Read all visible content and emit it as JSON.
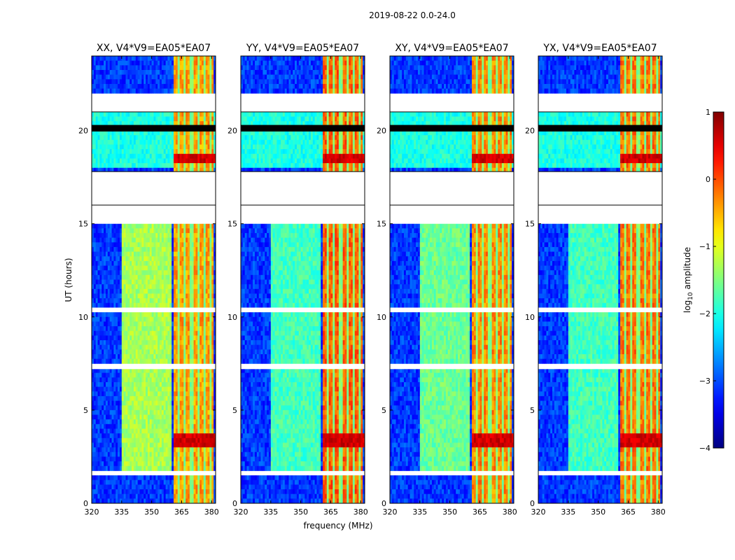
{
  "figure_title": "2019-08-22 0.0-24.0",
  "colors": {
    "colormap": "jet",
    "blank": "#ffffff",
    "frame": "#000000"
  },
  "chart_data": {
    "type": "heatmap",
    "xlabel": "frequency (MHz)",
    "ylabel": "UT (hours)",
    "xlim": [
      320,
      382
    ],
    "ylim": [
      0,
      24
    ],
    "xticks": [
      320,
      335,
      350,
      365,
      380
    ],
    "yticks": [
      0,
      5,
      10,
      15,
      20
    ],
    "frequency_bands_MHz": {
      "broad_emission": [
        335,
        360
      ],
      "rfi_channels": [
        361,
        362,
        365,
        368,
        372,
        375,
        378,
        381
      ]
    },
    "panels": [
      {
        "title": "XX, V4*V9=EA05*EA07",
        "broad_level": -1.3,
        "rfi_level": -0.4
      },
      {
        "title": "YY, V4*V9=EA05*EA07",
        "broad_level": -1.8,
        "rfi_level": -0.1
      },
      {
        "title": "XY, V4*V9=EA05*EA07",
        "broad_level": -1.6,
        "rfi_level": -0.3
      },
      {
        "title": "YX, V4*V9=EA05*EA07",
        "broad_level": -1.8,
        "rfi_level": -0.2
      }
    ],
    "flagged_UT_ranges_hours": [
      [
        15.0,
        17.8
      ],
      [
        21.0,
        21.9
      ],
      [
        7.2,
        7.45
      ],
      [
        10.3,
        10.5
      ],
      [
        1.55,
        1.7
      ]
    ],
    "hot_UT_ranges_hours": [
      [
        21.9,
        22.1
      ],
      [
        18.3,
        18.7
      ],
      [
        3.0,
        3.7
      ]
    ],
    "colorbar": {
      "label": "log",
      "label_sub": "10",
      "label_rest": " amplitude",
      "min": -4,
      "max": 1,
      "ticks": [
        1,
        0,
        -1,
        -2,
        -3,
        -4
      ],
      "tick_labels": [
        "1",
        "0",
        "−1",
        "−2",
        "−3",
        "−4"
      ]
    }
  }
}
